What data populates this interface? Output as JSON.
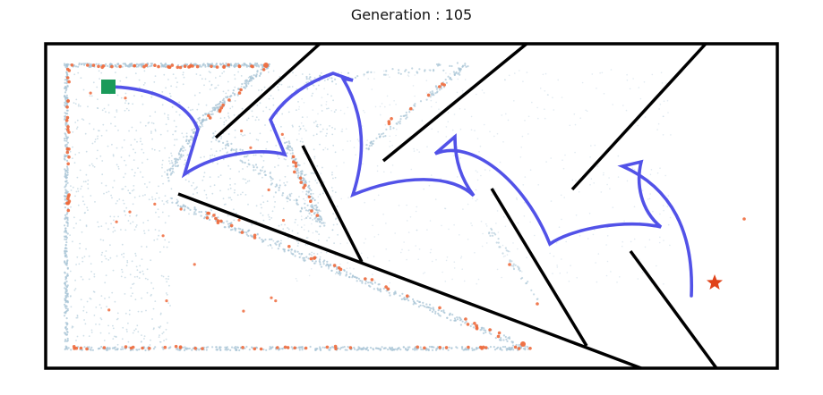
{
  "title": "Generation : 105",
  "colors": {
    "wall": "#000000",
    "path": "#5252e8",
    "start": "#1a9a5a",
    "goal": "#e0431a",
    "archive_point": "#a8c4d6",
    "novel_point": "#ee6a3c"
  },
  "markers": {
    "start": "square",
    "goal": "star"
  }
}
